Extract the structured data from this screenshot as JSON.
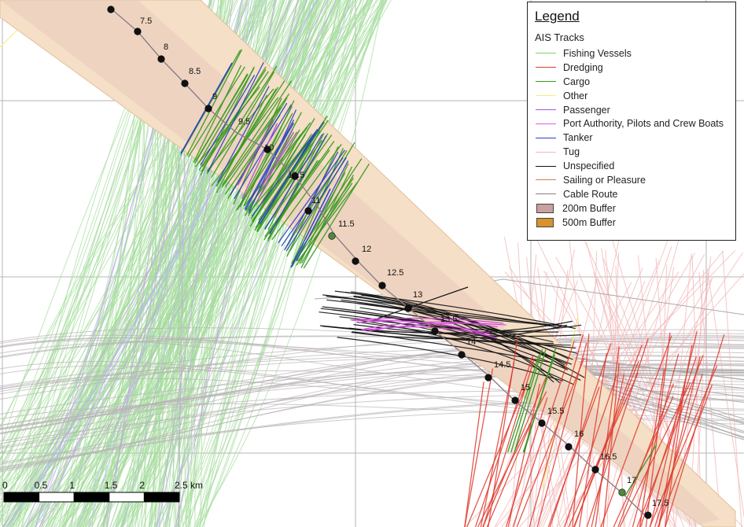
{
  "kp_labels": [
    "7.5",
    "8",
    "8.5",
    "9",
    "9.5",
    "10",
    "10.5",
    "11",
    "11.5",
    "12",
    "12.5",
    "13",
    "13.5",
    "14",
    "14.5",
    "15",
    "15.5",
    "16",
    "16.5",
    "17",
    "17.5"
  ],
  "scale_bar": {
    "labels": [
      "0",
      "0.5",
      "1",
      "1.5",
      "2",
      "2.5 km"
    ]
  },
  "legend": {
    "title": "Legend",
    "subtitle": "AIS Tracks",
    "lines": [
      {
        "label": "Fishing Vessels",
        "color": "#7ed36a"
      },
      {
        "label": "Dredging",
        "color": "#e03a2e"
      },
      {
        "label": "Cargo",
        "color": "#3a9a23"
      },
      {
        "label": "Other",
        "color": "#f3ef7a"
      },
      {
        "label": "Passenger",
        "color": "#a05ad8"
      },
      {
        "label": "Port Authority, Pilots and Crew Boats",
        "color": "#e05ce0"
      },
      {
        "label": "Tanker",
        "color": "#2a3ec8"
      },
      {
        "label": "Tug",
        "color": "#f1b7c0"
      },
      {
        "label": "Unspecified",
        "color": "#111111"
      },
      {
        "label": "Sailing or Pleasure",
        "color": "#e07a55"
      },
      {
        "label": "Cable Route",
        "color": "#8a7f86"
      }
    ],
    "boxes": [
      {
        "label": "200m Buffer",
        "color": "#c9a09f"
      },
      {
        "label": "500m Buffer",
        "color": "#d9922c"
      }
    ]
  },
  "colors": {
    "buffer_500": "#f5dfc6",
    "buffer_200": "#e6c8b8",
    "grid": "#b4b4b4",
    "kp_point": "#111111",
    "kp_point_green": "#4e8a3a"
  }
}
